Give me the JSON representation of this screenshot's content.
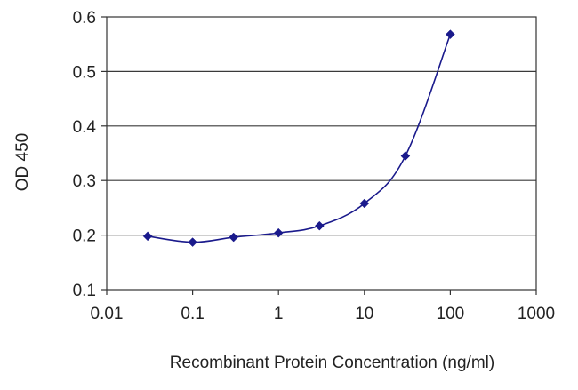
{
  "chart_data": {
    "type": "line",
    "title": "",
    "xlabel": "Recombinant Protein Concentration (ng/ml)",
    "ylabel": "OD 450",
    "x_scale": "log",
    "xlim": [
      0.01,
      1000
    ],
    "ylim": [
      0.1,
      0.6
    ],
    "x_ticks": [
      "0.01",
      "0.1",
      "1",
      "10",
      "100",
      "1000"
    ],
    "y_ticks": [
      "0.1",
      "0.2",
      "0.3",
      "0.4",
      "0.5",
      "0.6"
    ],
    "grid": "horizontal",
    "legend": "none",
    "series": [
      {
        "x": [
          0.03,
          0.1,
          0.3,
          1,
          3,
          10,
          30,
          100
        ],
        "y": [
          0.198,
          0.187,
          0.196,
          0.204,
          0.217,
          0.258,
          0.345,
          0.568
        ],
        "color": "#1a1a8c",
        "marker": "diamond"
      }
    ]
  }
}
